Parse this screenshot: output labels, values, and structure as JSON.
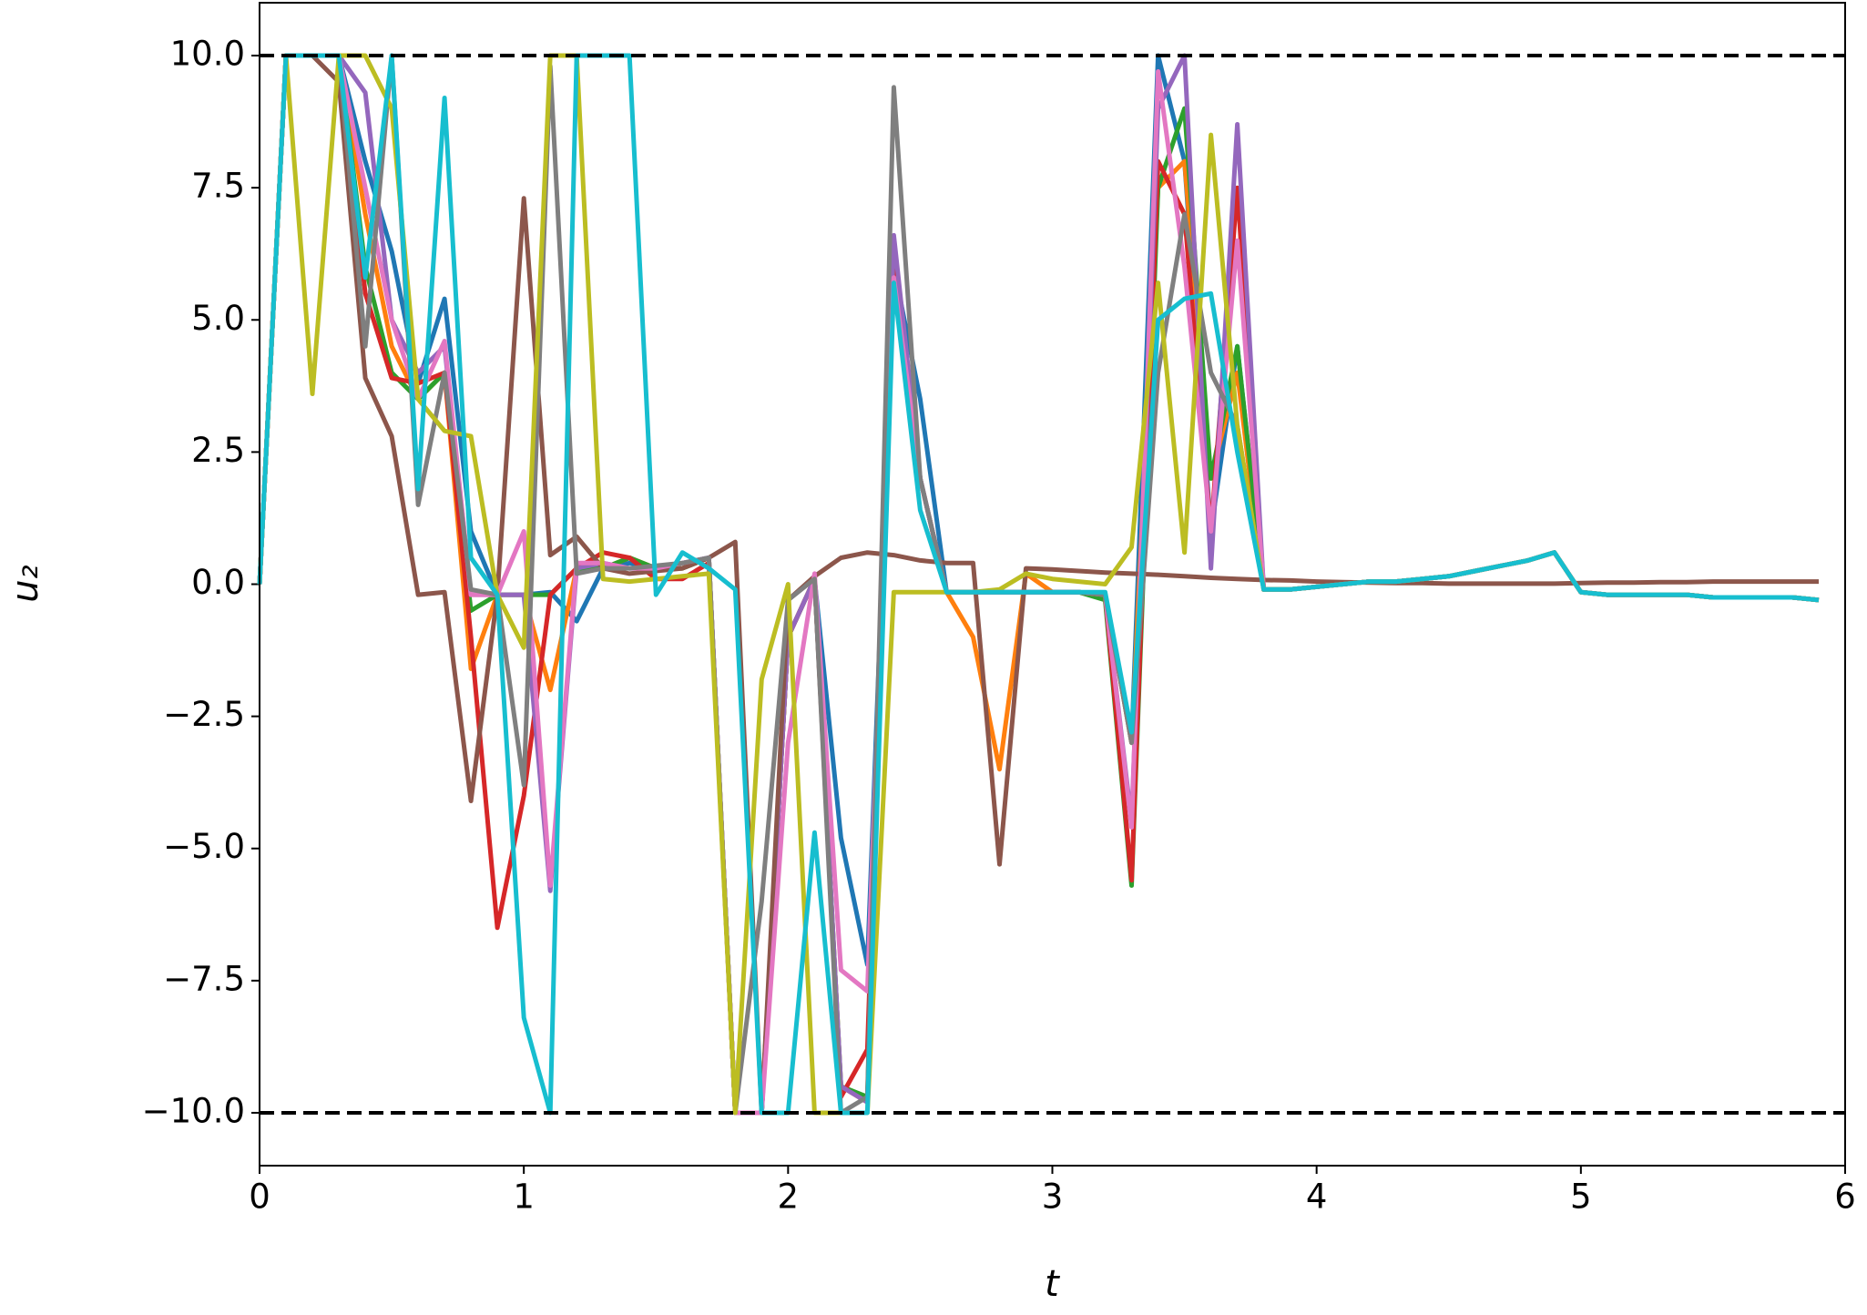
{
  "chart_data": {
    "type": "line",
    "xlabel": "t",
    "ylabel": "u₂",
    "xlim": [
      0,
      6
    ],
    "ylim": [
      -11,
      11
    ],
    "xticks": [
      0,
      1,
      2,
      3,
      4,
      5,
      6
    ],
    "yticks": [
      {
        "value": -10,
        "label": "−10.0"
      },
      {
        "value": -7.5,
        "label": "−7.5"
      },
      {
        "value": -5,
        "label": "−5.0"
      },
      {
        "value": -2.5,
        "label": "−2.5"
      },
      {
        "value": 0,
        "label": "0.0"
      },
      {
        "value": 2.5,
        "label": "2.5"
      },
      {
        "value": 5,
        "label": "5.0"
      },
      {
        "value": 7.5,
        "label": "7.5"
      },
      {
        "value": 10,
        "label": "10.0"
      }
    ],
    "hlines": [
      10,
      -10
    ],
    "hline_color": "#000000",
    "x": [
      0,
      0.1,
      0.2,
      0.3,
      0.4,
      0.5,
      0.6,
      0.7,
      0.8,
      0.9,
      1,
      1.1,
      1.2,
      1.3,
      1.4,
      1.5,
      1.6,
      1.7,
      1.8,
      1.9,
      2,
      2.1,
      2.2,
      2.3,
      2.4,
      2.5,
      2.6,
      2.7,
      2.8,
      2.9,
      3,
      3.1,
      3.2,
      3.3,
      3.4,
      3.5,
      3.6,
      3.7,
      3.8,
      3.9,
      4,
      4.1,
      4.2,
      4.3,
      4.4,
      4.5,
      4.6,
      4.7,
      4.8,
      4.9,
      5,
      5.1,
      5.2,
      5.3,
      5.4,
      5.5,
      5.6,
      5.7,
      5.8,
      5.9
    ],
    "series": [
      {
        "color": "#1f77b4",
        "values": [
          0,
          10,
          10,
          10,
          8,
          6.3,
          3.8,
          5.4,
          1,
          -0.2,
          -0.2,
          -0.15,
          -0.7,
          0.3,
          0.4,
          0.3,
          0.4,
          0.5,
          -10,
          -10,
          -1,
          0.1,
          -4.8,
          -7.2,
          6,
          3.5,
          -0.15,
          -0.15,
          -0.15,
          -0.15,
          -0.15,
          -0.15,
          -0.2,
          -3,
          10,
          8,
          1,
          4.5,
          -0.1,
          -0.1,
          -0.05,
          0,
          0.05,
          0.05,
          0.1,
          0.15,
          0.25,
          0.35,
          0.45,
          0.6,
          -0.15,
          -0.2,
          -0.2,
          -0.2,
          -0.2,
          -0.25,
          -0.25,
          -0.25,
          -0.25,
          -0.3
        ]
      },
      {
        "color": "#ff7f0e",
        "values": [
          0,
          10,
          10,
          10,
          7,
          4.5,
          3.5,
          4,
          -1.6,
          -0.2,
          -0.2,
          -2,
          0.3,
          0.3,
          0.5,
          0.3,
          0.3,
          0.5,
          -10,
          -10,
          -1,
          0.1,
          -9.5,
          -9.8,
          6,
          2,
          -0.15,
          -1,
          -3.5,
          0.2,
          -0.15,
          -0.15,
          -0.2,
          -3,
          7.5,
          8,
          2,
          4,
          -0.1,
          -0.1,
          -0.05,
          0,
          0.05,
          0.05,
          0.1,
          0.15,
          0.25,
          0.35,
          0.45,
          0.6,
          -0.15,
          -0.2,
          -0.2,
          -0.2,
          -0.2,
          -0.25,
          -0.25,
          -0.25,
          -0.25,
          -0.3
        ]
      },
      {
        "color": "#2ca02c",
        "values": [
          0,
          10,
          10,
          10,
          6,
          4,
          3.5,
          4,
          -0.5,
          -0.2,
          -0.2,
          -0.2,
          0.3,
          0.3,
          0.5,
          0.3,
          0.3,
          0.5,
          -10,
          -10,
          -1,
          0.1,
          -9.5,
          -9.7,
          6,
          2,
          -0.15,
          -0.15,
          -0.15,
          -0.15,
          -0.15,
          -0.15,
          -0.3,
          -5.7,
          7.5,
          9,
          2,
          4.5,
          -0.1,
          -0.1,
          -0.05,
          0,
          0.05,
          0.05,
          0.1,
          0.15,
          0.25,
          0.35,
          0.45,
          0.6,
          -0.15,
          -0.2,
          -0.2,
          -0.2,
          -0.2,
          -0.25,
          -0.25,
          -0.25,
          -0.25,
          -0.3
        ]
      },
      {
        "color": "#d62728",
        "values": [
          0,
          10,
          10,
          10,
          5.5,
          3.9,
          3.8,
          4,
          -1,
          -6.5,
          -4,
          -0.2,
          0.3,
          0.6,
          0.5,
          0.1,
          0.1,
          0.4,
          -10,
          -10,
          -1,
          0.1,
          -9.7,
          -8.8,
          6,
          2,
          -0.15,
          -0.15,
          -0.15,
          -0.15,
          -0.15,
          -0.15,
          -0.2,
          -5.6,
          8,
          7,
          1,
          7.5,
          -0.1,
          -0.1,
          -0.05,
          0,
          0.05,
          0.05,
          0.1,
          0.15,
          0.25,
          0.35,
          0.45,
          0.6,
          -0.15,
          -0.2,
          -0.2,
          -0.2,
          -0.2,
          -0.25,
          -0.25,
          -0.25,
          -0.25,
          -0.3
        ]
      },
      {
        "color": "#9467bd",
        "values": [
          0,
          10,
          10,
          10,
          9.3,
          5,
          4,
          4.5,
          -0.2,
          -0.2,
          -0.2,
          -5.8,
          0.3,
          0.4,
          0.3,
          0.3,
          0.4,
          0.5,
          -10,
          -10,
          -1,
          0.1,
          -9.5,
          -9.8,
          6.6,
          2,
          -0.15,
          -0.15,
          -0.15,
          -0.15,
          -0.15,
          -0.15,
          -0.2,
          -4.5,
          9,
          10,
          0.3,
          8.7,
          -0.1,
          -0.1,
          -0.05,
          0,
          0.05,
          0.05,
          0.1,
          0.15,
          0.25,
          0.35,
          0.45,
          0.6,
          -0.15,
          -0.2,
          -0.2,
          -0.2,
          -0.2,
          -0.25,
          -0.25,
          -0.25,
          -0.25,
          -0.3
        ]
      },
      {
        "color": "#8c564b",
        "values": [
          0,
          10,
          10,
          9.5,
          3.9,
          2.8,
          -0.2,
          -0.15,
          -4.1,
          -0.2,
          7.3,
          0.55,
          0.9,
          0.3,
          0.2,
          0.25,
          0.3,
          0.5,
          0.8,
          -10,
          -0.3,
          0.15,
          0.5,
          0.6,
          0.55,
          0.45,
          0.4,
          0.4,
          -5.3,
          0.3,
          0.28,
          0.25,
          0.22,
          0.2,
          0.18,
          0.15,
          0.12,
          0.1,
          0.08,
          0.07,
          0.05,
          0.04,
          0.03,
          0.02,
          0.02,
          0.01,
          0.01,
          0.01,
          0.01,
          0.01,
          0.02,
          0.03,
          0.03,
          0.04,
          0.04,
          0.05,
          0.05,
          0.05,
          0.05,
          0.05
        ]
      },
      {
        "color": "#e377c2",
        "values": [
          0,
          10,
          10,
          10,
          7.5,
          5,
          3.5,
          4.6,
          -0.2,
          -0.2,
          1,
          -5.7,
          0.4,
          0.4,
          0.3,
          0.3,
          0.4,
          0.5,
          -10,
          -10,
          -3,
          0.2,
          -7.3,
          -7.7,
          5.8,
          2,
          -0.15,
          -0.15,
          -0.15,
          -0.15,
          -0.15,
          -0.15,
          -0.2,
          -4.6,
          9.7,
          6,
          1,
          6.5,
          -0.1,
          -0.1,
          -0.05,
          0,
          0.05,
          0.05,
          0.1,
          0.15,
          0.25,
          0.35,
          0.45,
          0.6,
          -0.15,
          -0.2,
          -0.2,
          -0.2,
          -0.2,
          -0.25,
          -0.25,
          -0.25,
          -0.25,
          -0.3
        ]
      },
      {
        "color": "#7f7f7f",
        "values": [
          0,
          10,
          10,
          10,
          4.5,
          10,
          1.5,
          4,
          -0.1,
          -0.2,
          -3.8,
          9.8,
          0.2,
          0.3,
          0.3,
          0.35,
          0.4,
          0.5,
          -10,
          -6,
          -0.3,
          0.1,
          -10,
          -9.7,
          9.4,
          2,
          -0.15,
          -0.15,
          -0.15,
          -0.15,
          -0.15,
          -0.15,
          -0.2,
          -3,
          4,
          7,
          4,
          3,
          -0.1,
          -0.1,
          -0.05,
          0,
          0.05,
          0.05,
          0.1,
          0.15,
          0.25,
          0.35,
          0.45,
          0.6,
          -0.15,
          -0.2,
          -0.2,
          -0.2,
          -0.2,
          -0.25,
          -0.25,
          -0.25,
          -0.25,
          -0.3
        ]
      },
      {
        "color": "#bcbd22",
        "values": [
          0,
          10,
          3.6,
          10,
          10,
          9,
          3.5,
          2.9,
          2.8,
          -0.2,
          -1.2,
          10,
          10,
          0.1,
          0.05,
          0.1,
          0.15,
          0.2,
          -10,
          -1.8,
          0,
          -10,
          -10,
          -10,
          -0.15,
          -0.15,
          -0.15,
          -0.15,
          -0.1,
          0.2,
          0.1,
          0.05,
          0,
          0.7,
          5.7,
          0.6,
          8.5,
          3,
          -0.1,
          -0.1,
          -0.05,
          0,
          0.05,
          0.05,
          0.1,
          0.15,
          0.25,
          0.35,
          0.45,
          0.6,
          -0.15,
          -0.2,
          -0.2,
          -0.2,
          -0.2,
          -0.25,
          -0.25,
          -0.25,
          -0.25,
          -0.3
        ]
      },
      {
        "color": "#17becf",
        "values": [
          0,
          10,
          10,
          10,
          5.8,
          10,
          1.8,
          9.2,
          0.5,
          -0.2,
          -8.2,
          -10,
          10,
          10,
          10,
          -0.2,
          0.6,
          0.3,
          -0.1,
          -10,
          -10,
          -4.7,
          -10,
          -10,
          5.7,
          1.4,
          -0.15,
          -0.15,
          -0.15,
          -0.15,
          -0.15,
          -0.15,
          -0.15,
          -2.8,
          5,
          5.4,
          5.5,
          2.5,
          -0.1,
          -0.1,
          -0.05,
          0,
          0.05,
          0.05,
          0.1,
          0.15,
          0.25,
          0.35,
          0.45,
          0.6,
          -0.15,
          -0.2,
          -0.2,
          -0.2,
          -0.2,
          -0.25,
          -0.25,
          -0.25,
          -0.25,
          -0.3
        ]
      }
    ]
  }
}
